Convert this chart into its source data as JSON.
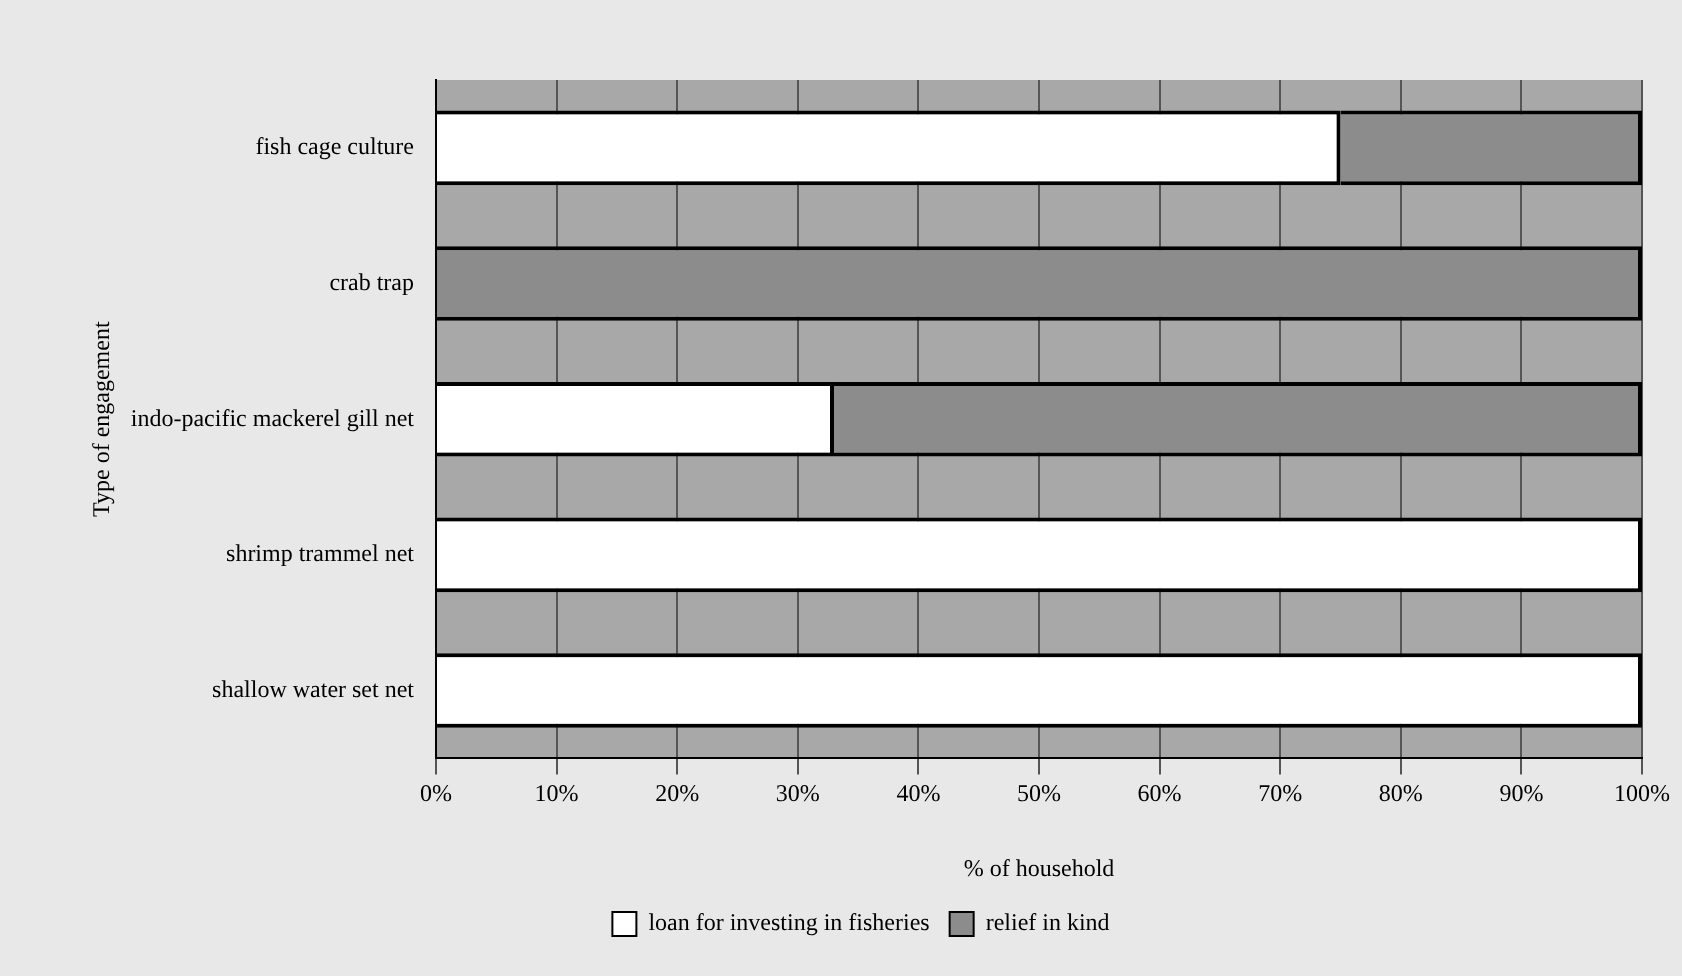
{
  "chart_data": {
    "type": "bar",
    "orientation": "horizontal",
    "stacked": true,
    "xlabel": "% of household",
    "ylabel": "Type of engagement",
    "categories": [
      "fish cage culture",
      "crab trap",
      "indo-pacific mackerel gill net",
      "shrimp trammel net",
      "shallow water set net"
    ],
    "series": [
      {
        "name": "loan for investing in fisheries",
        "color": "#ffffff",
        "values": [
          75,
          0,
          33,
          100,
          100
        ]
      },
      {
        "name": "relief in kind",
        "color": "#8c8c8c",
        "values": [
          25,
          100,
          67,
          0,
          0
        ]
      }
    ],
    "xlim": [
      0,
      100
    ],
    "xticks": [
      {
        "value": 0,
        "label": "0%"
      },
      {
        "value": 10,
        "label": "10%"
      },
      {
        "value": 20,
        "label": "20%"
      },
      {
        "value": 30,
        "label": "30%"
      },
      {
        "value": 40,
        "label": "40%"
      },
      {
        "value": 50,
        "label": "50%"
      },
      {
        "value": 60,
        "label": "60%"
      },
      {
        "value": 70,
        "label": "70%"
      },
      {
        "value": 80,
        "label": "80%"
      },
      {
        "value": 90,
        "label": "90%"
      },
      {
        "value": 100,
        "label": "100%"
      }
    ],
    "grid": "x",
    "legend": "bottom"
  }
}
